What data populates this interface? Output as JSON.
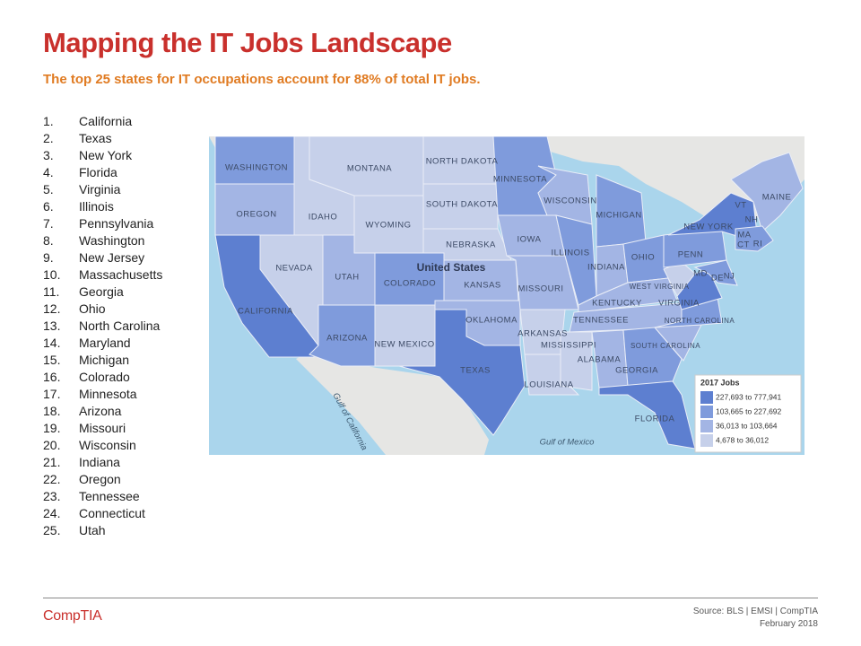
{
  "header": {
    "title": "Mapping the IT Jobs Landscape",
    "subtitle": "The top 25 states for IT occupations account for 88% of total IT jobs."
  },
  "ranking": [
    {
      "rank": "1.",
      "state": "California"
    },
    {
      "rank": "2.",
      "state": "Texas"
    },
    {
      "rank": "3.",
      "state": "New York"
    },
    {
      "rank": "4.",
      "state": "Florida"
    },
    {
      "rank": "5.",
      "state": "Virginia"
    },
    {
      "rank": "6.",
      "state": "Illinois"
    },
    {
      "rank": "7.",
      "state": "Pennsylvania"
    },
    {
      "rank": "8.",
      "state": "Washington"
    },
    {
      "rank": "9.",
      "state": "New Jersey"
    },
    {
      "rank": "10.",
      "state": "Massachusetts"
    },
    {
      "rank": "11.",
      "state": "Georgia"
    },
    {
      "rank": "12.",
      "state": "Ohio"
    },
    {
      "rank": "13.",
      "state": "North Carolina"
    },
    {
      "rank": "14.",
      "state": "Maryland"
    },
    {
      "rank": "15.",
      "state": "Michigan"
    },
    {
      "rank": "16.",
      "state": "Colorado"
    },
    {
      "rank": "17.",
      "state": "Minnesota"
    },
    {
      "rank": "18.",
      "state": "Arizona"
    },
    {
      "rank": "19.",
      "state": "Missouri"
    },
    {
      "rank": "20.",
      "state": "Wisconsin"
    },
    {
      "rank": "21.",
      "state": "Indiana"
    },
    {
      "rank": "22.",
      "state": "Oregon"
    },
    {
      "rank": "23.",
      "state": "Tennessee"
    },
    {
      "rank": "24.",
      "state": "Connecticut"
    },
    {
      "rank": "25.",
      "state": "Utah"
    }
  ],
  "map": {
    "country_label": "United States",
    "state_labels": [
      "WASHINGTON",
      "MONTANA",
      "NORTH DAKOTA",
      "MINNESOTA",
      "WISCONSIN",
      "MICHIGAN",
      "OREGON",
      "IDAHO",
      "WYOMING",
      "SOUTH DAKOTA",
      "NEBRASKA",
      "IOWA",
      "ILLINOIS",
      "INDIANA",
      "OHIO",
      "NEW YORK",
      "PENN",
      "NEVADA",
      "UTAH",
      "COLORADO",
      "KANSAS",
      "MISSOURI",
      "KENTUCKY",
      "WEST VIRGINIA",
      "VIRGINIA",
      "CALIFORNIA",
      "OKLAHOMA",
      "TENNESSEE",
      "NORTH CAROLINA",
      "ARIZONA",
      "NEW MEXICO",
      "ARKANSAS",
      "MISSISSIPPI",
      "ALABAMA",
      "SOUTH CAROLINA",
      "GEORGIA",
      "TEXAS",
      "LOUISIANA",
      "FLORIDA",
      "MAINE",
      "VT",
      "NH",
      "MA",
      "CT",
      "RI",
      "MD",
      "DE",
      "NJ"
    ],
    "water_labels": [
      "Gulf of California",
      "Gulf of Mexico"
    ],
    "legend": {
      "title": "2017 Jobs",
      "items": [
        {
          "label": "227,693 to 777,941",
          "color": "#5d7fd0"
        },
        {
          "label": "103,665 to 227,692",
          "color": "#7f9bdc"
        },
        {
          "label": "36,013 to 103,664",
          "color": "#a3b5e4"
        },
        {
          "label": "4,678 to 36,012",
          "color": "#c6d0ea"
        }
      ]
    }
  },
  "footer": {
    "logo": "CompTIA",
    "source": "Source: BLS | EMSI | CompTIA",
    "date": "February 2018"
  }
}
